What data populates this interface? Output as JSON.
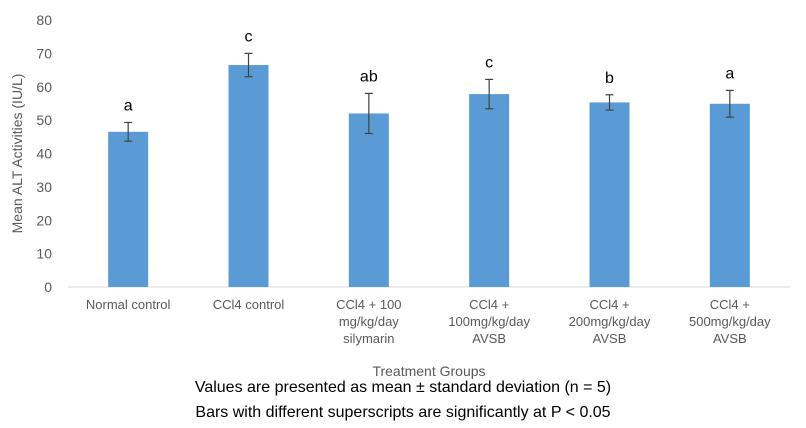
{
  "chart_data": {
    "type": "bar",
    "title": "",
    "xlabel": "Treatment Groups",
    "ylabel": "Mean ALT Activities (IU/L)",
    "ylim": [
      0,
      80
    ],
    "yticks": [
      0,
      10,
      20,
      30,
      40,
      50,
      60,
      70,
      80
    ],
    "grid": false,
    "bar_color": "#5b9bd5",
    "categories": [
      [
        "Normal control"
      ],
      [
        "CCl4 control"
      ],
      [
        "CCl4 + 100",
        "mg/kg/day",
        "silymarin"
      ],
      [
        "CCl4 +",
        "100mg/kg/day",
        "AVSB"
      ],
      [
        "CCl4 +",
        "200mg/kg/day",
        "AVSB"
      ],
      [
        "CCl4 +",
        "500mg/kg/day",
        "AVSB"
      ]
    ],
    "values": [
      46.5,
      66.5,
      52,
      57.8,
      55.3,
      54.9
    ],
    "error": [
      2.8,
      3.5,
      6.0,
      4.4,
      2.3,
      4.0
    ],
    "superscripts": [
      "a",
      "c",
      "ab",
      "c",
      "b",
      "a"
    ]
  },
  "captions": [
    "Values are presented as mean ± standard deviation (n = 5)",
    "Bars with different superscripts are significantly at P < 0.05"
  ]
}
